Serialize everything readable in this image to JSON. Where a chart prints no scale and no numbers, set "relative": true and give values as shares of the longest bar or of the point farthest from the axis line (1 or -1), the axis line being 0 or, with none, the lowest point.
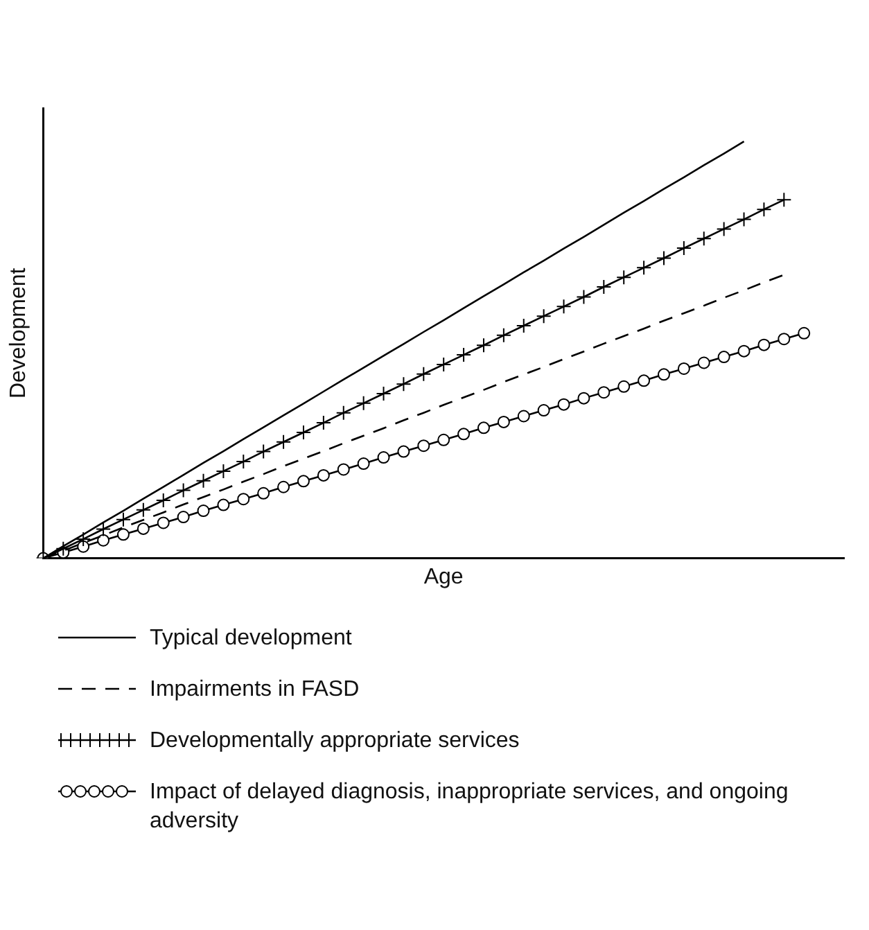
{
  "chart_data": {
    "type": "line",
    "relative": true,
    "xlabel": "Age",
    "ylabel": "Development",
    "tick_labels": false,
    "legend": "bottom",
    "categories": [
      null,
      null,
      null,
      null,
      null,
      null,
      null,
      null,
      null,
      null,
      null,
      null,
      null,
      null,
      null,
      null,
      null,
      null,
      null,
      null,
      null,
      null,
      null,
      null,
      null,
      null,
      null,
      null,
      null,
      null,
      null,
      null,
      null,
      null,
      null,
      null,
      null,
      null,
      null,
      null,
      null
    ],
    "series": [
      {
        "name": "Typical development",
        "color": "#000000",
        "marker": "none",
        "line_style": "solid",
        "values": [
          0,
          0.029,
          0.057,
          0.086,
          0.114,
          0.143,
          0.171,
          0.2,
          0.229,
          0.257,
          0.286,
          0.314,
          0.343,
          0.371,
          0.4,
          0.429,
          0.457,
          0.486,
          0.514,
          0.543,
          0.571,
          0.6,
          0.629,
          0.657,
          0.686,
          0.714,
          0.743,
          0.771,
          0.8,
          0.829,
          0.857,
          0.886,
          0.914,
          0.943,
          0.971,
          1,
          null,
          null,
          null,
          null,
          null
        ]
      },
      {
        "name": "Impairments in FASD",
        "color": "#000000",
        "marker": "none",
        "line_style": "dashed",
        "values": [
          0,
          0.018,
          0.037,
          0.055,
          0.074,
          0.092,
          0.11,
          0.129,
          0.147,
          0.165,
          0.184,
          0.202,
          0.221,
          0.239,
          0.257,
          0.276,
          0.294,
          0.312,
          0.331,
          0.349,
          0.368,
          0.386,
          0.404,
          0.423,
          0.441,
          0.459,
          0.478,
          0.496,
          0.515,
          0.533,
          0.551,
          0.57,
          0.588,
          0.606,
          0.625,
          0.643,
          0.662,
          0.68,
          null,
          null,
          null
        ]
      },
      {
        "name": "Developmentally appropriate services",
        "color": "#000000",
        "marker": "cross",
        "line_style": "solid",
        "values": [
          0,
          0.023,
          0.046,
          0.07,
          0.093,
          0.116,
          0.139,
          0.163,
          0.186,
          0.209,
          0.232,
          0.256,
          0.279,
          0.302,
          0.325,
          0.349,
          0.372,
          0.395,
          0.418,
          0.442,
          0.465,
          0.488,
          0.511,
          0.535,
          0.558,
          0.581,
          0.604,
          0.627,
          0.651,
          0.674,
          0.697,
          0.72,
          0.744,
          0.767,
          0.79,
          0.813,
          0.837,
          0.86,
          null,
          null,
          null
        ]
      },
      {
        "name": "Impact of delayed diagnosis, inappropriate services, and ongoing adversity",
        "color": "#000000",
        "marker": "circle",
        "line_style": "solid",
        "values": [
          0,
          0.014,
          0.028,
          0.043,
          0.057,
          0.071,
          0.085,
          0.099,
          0.114,
          0.128,
          0.142,
          0.156,
          0.171,
          0.185,
          0.199,
          0.213,
          0.227,
          0.242,
          0.256,
          0.27,
          0.284,
          0.298,
          0.313,
          0.327,
          0.341,
          0.355,
          0.369,
          0.384,
          0.398,
          0.412,
          0.426,
          0.441,
          0.455,
          0.469,
          0.483,
          0.497,
          0.512,
          0.526,
          0.54,
          null,
          null
        ]
      }
    ]
  }
}
